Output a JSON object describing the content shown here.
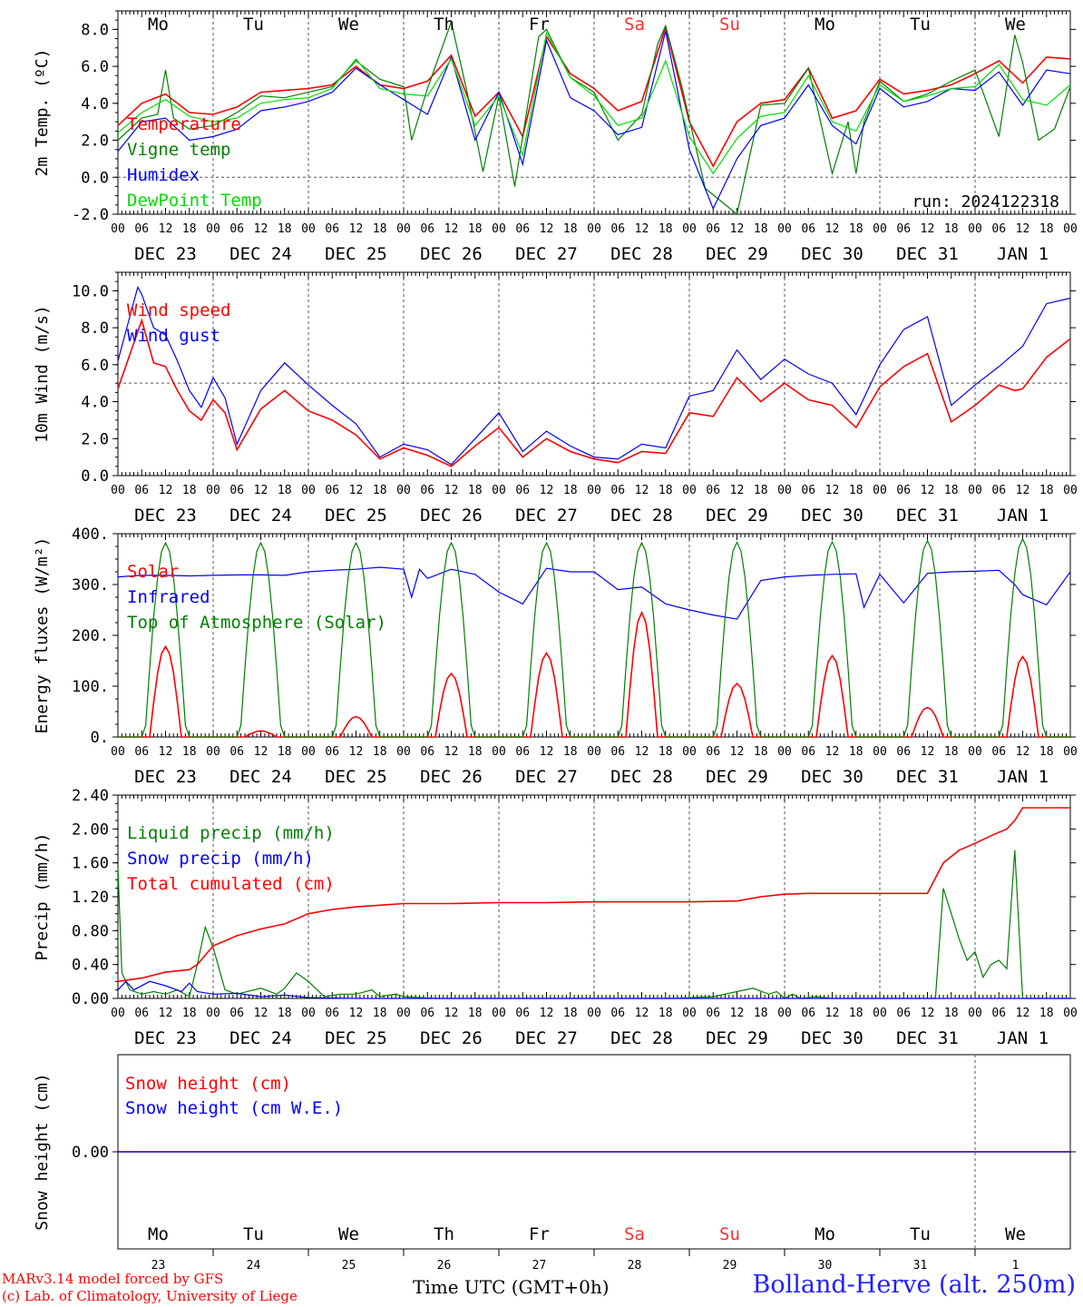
{
  "days": {
    "top": [
      "Mo",
      "Tu",
      "We",
      "Th",
      "Fr",
      "Sa",
      "Su",
      "Mo",
      "Tu",
      "We"
    ],
    "bottom_dates": [
      "23",
      "24",
      "25",
      "26",
      "27",
      "28",
      "29",
      "30",
      "31",
      "1"
    ],
    "weekend_color": "#ff3030",
    "weekend_index": [
      5,
      6
    ]
  },
  "date_labels": [
    "DEC 23",
    "DEC 24",
    "DEC 25",
    "DEC 26",
    "DEC 27",
    "DEC 28",
    "DEC 29",
    "DEC 30",
    "DEC 31",
    "JAN  1"
  ],
  "hour_labels": [
    "00",
    "06",
    "12",
    "18"
  ],
  "footer": {
    "credit_line1": "MARv3.14 model forced by GFS",
    "credit_line2": "(c) Lab. of Climatology, University of Liege",
    "time_axis": "Time UTC (GMT+0h)",
    "station": "Bolland-Herve (alt. 250m)"
  },
  "chart_data": [
    {
      "type": "line",
      "ylabel": "2m Temp. (ºC)",
      "ylim": [
        -2,
        9
      ],
      "yticks": [
        "-2.0",
        "0.0",
        "2.0",
        "4.0",
        "6.0",
        "8.0"
      ],
      "ytick_values": [
        -2,
        0,
        2,
        4,
        6,
        8
      ],
      "reference_line": 0,
      "annotation": "run: 2024122318",
      "x_unit": "hours since DEC 23 00 UTC",
      "series": [
        {
          "name": "Temperature",
          "color": "#ff0000",
          "x": [
            0,
            6,
            12,
            18,
            24,
            30,
            36,
            42,
            48,
            54,
            60,
            66,
            72,
            78,
            84,
            90,
            96,
            102,
            108,
            114,
            120,
            126,
            132,
            138,
            144,
            150,
            156,
            162,
            168,
            174,
            180,
            186,
            192,
            198,
            204,
            210,
            216,
            222,
            228,
            234,
            240
          ],
          "y": [
            2.8,
            4.0,
            4.5,
            3.5,
            3.4,
            3.8,
            4.6,
            4.7,
            4.8,
            5.0,
            6.0,
            5.0,
            4.8,
            5.2,
            6.6,
            3.3,
            4.6,
            2.2,
            7.6,
            5.6,
            4.8,
            3.6,
            4.1,
            8.1,
            3.0,
            0.6,
            3.0,
            4.0,
            4.2,
            5.9,
            3.2,
            3.6,
            5.3,
            4.5,
            4.7,
            5.0,
            5.6,
            6.3,
            5.1,
            6.5,
            6.4
          ]
        },
        {
          "name": "Vigne temp",
          "color": "#008000",
          "x": [
            0,
            6,
            10,
            12,
            14,
            18,
            24,
            30,
            36,
            42,
            48,
            54,
            60,
            66,
            72,
            74,
            78,
            84,
            88,
            92,
            96,
            100,
            106,
            108,
            114,
            120,
            126,
            132,
            136,
            138,
            142,
            148,
            156,
            162,
            168,
            174,
            180,
            184,
            186,
            188,
            192,
            198,
            204,
            210,
            216,
            222,
            226,
            228,
            232,
            236,
            240
          ],
          "y": [
            2.0,
            3.2,
            3.4,
            5.8,
            3.2,
            2.6,
            2.8,
            3.5,
            4.4,
            4.3,
            4.6,
            4.9,
            6.3,
            5.3,
            4.9,
            2.0,
            4.8,
            8.4,
            4.6,
            0.3,
            4.4,
            -0.5,
            7.6,
            8.0,
            5.4,
            4.6,
            2.0,
            3.4,
            7.2,
            8.2,
            5.0,
            -0.6,
            -2.2,
            3.9,
            4.0,
            5.9,
            0.2,
            3.0,
            0.2,
            3.0,
            5.2,
            4.1,
            4.5,
            5.2,
            5.8,
            2.2,
            7.7,
            6.2,
            2.0,
            2.6,
            4.9
          ]
        },
        {
          "name": "Humidex",
          "color": "#0000ff",
          "x": [
            0,
            6,
            12,
            18,
            24,
            30,
            36,
            42,
            48,
            54,
            60,
            66,
            72,
            78,
            84,
            90,
            96,
            102,
            108,
            114,
            120,
            126,
            132,
            138,
            144,
            150,
            156,
            162,
            168,
            174,
            180,
            186,
            192,
            198,
            204,
            210,
            216,
            222,
            228,
            234,
            240
          ],
          "y": [
            1.4,
            3.0,
            3.2,
            2.0,
            2.2,
            2.6,
            3.6,
            3.8,
            4.1,
            4.6,
            5.9,
            5.0,
            4.2,
            3.4,
            6.5,
            2.0,
            4.6,
            0.7,
            7.4,
            4.3,
            3.6,
            2.3,
            2.7,
            7.9,
            1.5,
            -1.7,
            1.0,
            2.8,
            3.2,
            5.0,
            2.8,
            1.8,
            4.8,
            3.8,
            4.1,
            4.8,
            4.7,
            5.7,
            3.9,
            5.8,
            5.6
          ]
        },
        {
          "name": "DewPoint Temp",
          "color": "#00dd00",
          "x": [
            0,
            6,
            12,
            18,
            24,
            30,
            36,
            42,
            48,
            54,
            60,
            66,
            72,
            78,
            84,
            90,
            96,
            102,
            108,
            114,
            120,
            126,
            132,
            138,
            144,
            150,
            156,
            162,
            168,
            174,
            180,
            186,
            192,
            198,
            204,
            210,
            216,
            222,
            228,
            234,
            240
          ],
          "y": [
            2.4,
            3.5,
            4.2,
            3.3,
            3.0,
            3.2,
            4.0,
            4.2,
            4.3,
            4.8,
            6.4,
            4.8,
            4.5,
            4.4,
            6.4,
            2.8,
            4.4,
            1.2,
            7.8,
            5.4,
            4.4,
            2.8,
            3.2,
            6.3,
            2.2,
            0.2,
            2.1,
            3.3,
            3.5,
            5.5,
            3.0,
            2.5,
            5.0,
            4.1,
            4.4,
            4.8,
            4.9,
            6.1,
            4.2,
            3.9,
            5.0
          ]
        }
      ]
    },
    {
      "type": "line",
      "ylabel": "10m Wind (m/s)",
      "ylim": [
        0,
        11
      ],
      "yticks": [
        "0.0",
        "2.0",
        "4.0",
        "6.0",
        "8.0",
        "10.0"
      ],
      "ytick_values": [
        0,
        2,
        4,
        6,
        8,
        10
      ],
      "reference_line": 5,
      "x_unit": "hours since DEC 23 00 UTC",
      "series": [
        {
          "name": "Wind speed",
          "color": "#ff0000",
          "x": [
            0,
            6,
            9,
            12,
            15,
            18,
            21,
            24,
            27,
            30,
            36,
            42,
            48,
            54,
            60,
            66,
            72,
            78,
            84,
            90,
            96,
            102,
            108,
            114,
            120,
            126,
            132,
            138,
            144,
            150,
            156,
            162,
            168,
            174,
            180,
            186,
            192,
            198,
            204,
            210,
            216,
            222,
            226,
            228,
            234,
            240
          ],
          "y": [
            4.7,
            8.4,
            6.1,
            5.9,
            4.6,
            3.5,
            3.0,
            4.1,
            3.4,
            1.4,
            3.6,
            4.6,
            3.5,
            3.0,
            2.2,
            0.9,
            1.5,
            1.1,
            0.5,
            1.6,
            2.6,
            1.0,
            2.0,
            1.3,
            0.9,
            0.7,
            1.3,
            1.2,
            3.4,
            3.2,
            5.3,
            4.0,
            5.0,
            4.1,
            3.8,
            2.6,
            4.8,
            5.9,
            6.6,
            2.9,
            3.8,
            4.9,
            4.6,
            4.7,
            6.4,
            7.4
          ]
        },
        {
          "name": "Wind gust",
          "color": "#0000ff",
          "x": [
            0,
            5,
            6,
            9,
            12,
            15,
            18,
            21,
            24,
            27,
            30,
            36,
            42,
            48,
            54,
            60,
            66,
            72,
            78,
            84,
            90,
            96,
            102,
            108,
            114,
            120,
            126,
            132,
            138,
            144,
            150,
            156,
            162,
            168,
            174,
            180,
            186,
            192,
            198,
            204,
            210,
            216,
            222,
            228,
            234,
            240
          ],
          "y": [
            6.2,
            10.2,
            9.8,
            8.0,
            7.6,
            6.2,
            4.6,
            3.7,
            5.3,
            4.2,
            1.7,
            4.6,
            6.1,
            4.9,
            3.8,
            2.8,
            1.0,
            1.7,
            1.4,
            0.6,
            2.0,
            3.4,
            1.3,
            2.4,
            1.6,
            1.0,
            0.9,
            1.7,
            1.5,
            4.3,
            4.6,
            6.8,
            5.2,
            6.3,
            5.5,
            5.0,
            3.3,
            6.0,
            7.9,
            8.6,
            3.8,
            4.9,
            5.9,
            7.0,
            9.3,
            9.6
          ]
        }
      ]
    },
    {
      "type": "line",
      "ylabel": "Energy fluxes (W/m²)",
      "ylim": [
        0,
        400
      ],
      "yticks": [
        "0.",
        "100.",
        "200.",
        "300.",
        "400."
      ],
      "ytick_values": [
        0,
        100,
        200,
        300,
        400
      ],
      "x_unit": "hours since DEC 23 00 UTC",
      "series": [
        {
          "name": "Solar",
          "color": "#ff0000",
          "day_peaks": [
            178,
            12,
            40,
            125,
            165,
            245,
            105,
            160,
            58,
            158
          ]
        },
        {
          "name": "Infrared",
          "color": "#0000ff",
          "x": [
            0,
            6,
            12,
            18,
            24,
            30,
            36,
            42,
            48,
            54,
            60,
            66,
            72,
            74,
            76,
            78,
            84,
            90,
            96,
            102,
            108,
            114,
            120,
            126,
            132,
            138,
            144,
            150,
            156,
            162,
            168,
            174,
            180,
            186,
            188,
            192,
            198,
            204,
            210,
            216,
            222,
            226,
            228,
            234,
            240
          ],
          "y": [
            315,
            318,
            318,
            317,
            318,
            319,
            319,
            318,
            325,
            328,
            330,
            334,
            330,
            275,
            330,
            312,
            330,
            320,
            285,
            262,
            332,
            325,
            325,
            290,
            295,
            262,
            250,
            240,
            232,
            308,
            315,
            318,
            320,
            321,
            255,
            320,
            264,
            322,
            325,
            326,
            328,
            300,
            280,
            260,
            325
          ]
        },
        {
          "name": "Top of Atmosphere (Solar)",
          "color": "#008000",
          "day_peaks": [
            382,
            382,
            382,
            382,
            382,
            382,
            383,
            384,
            386,
            390
          ]
        }
      ]
    },
    {
      "type": "line",
      "ylabel": "Precip (mm/h)",
      "ylim": [
        0,
        2.4
      ],
      "yticks": [
        "0.00",
        "0.40",
        "0.80",
        "1.20",
        "1.60",
        "2.00",
        "2.40"
      ],
      "ytick_values": [
        0,
        0.4,
        0.8,
        1.2,
        1.6,
        2.0,
        2.4
      ],
      "x_unit": "hours since DEC 23 00 UTC",
      "series": [
        {
          "name": "Liquid precip (mm/h)",
          "color": "#008000",
          "x": [
            0,
            1,
            3,
            6,
            9,
            12,
            15,
            18,
            20,
            22,
            24,
            27,
            30,
            36,
            40,
            42,
            45,
            48,
            52,
            56,
            60,
            64,
            66,
            70,
            72,
            80,
            100,
            120,
            140,
            150,
            160,
            164,
            166,
            168,
            170,
            172,
            176,
            180,
            190,
            200,
            204,
            206,
            208,
            210,
            212,
            214,
            216,
            218,
            220,
            222,
            224,
            226,
            228,
            232,
            240
          ],
          "y": [
            1.55,
            0.3,
            0.1,
            0.05,
            0.08,
            0.05,
            0.1,
            0.02,
            0.4,
            0.84,
            0.6,
            0.1,
            0.05,
            0.12,
            0.05,
            0.12,
            0.3,
            0.2,
            0.02,
            0.05,
            0.05,
            0.1,
            0.02,
            0.05,
            0.02,
            0.0,
            0.0,
            0.0,
            0.0,
            0.02,
            0.12,
            0.05,
            0.08,
            0.0,
            0.05,
            0.0,
            0.02,
            0.0,
            0.0,
            0.0,
            0.0,
            0.0,
            1.3,
            1.0,
            0.7,
            0.45,
            0.55,
            0.25,
            0.4,
            0.45,
            0.35,
            1.75,
            0.0,
            0.0,
            0.0
          ]
        },
        {
          "name": "Snow precip (mm/h)",
          "color": "#0000ff",
          "x": [
            0,
            2,
            4,
            8,
            12,
            16,
            18,
            20,
            24,
            30,
            36,
            42,
            48,
            60,
            72,
            100,
            150,
            200,
            240
          ],
          "y": [
            0.1,
            0.2,
            0.1,
            0.2,
            0.15,
            0.08,
            0.18,
            0.08,
            0.05,
            0.06,
            0.02,
            0.04,
            0.01,
            0.0,
            0.0,
            0.0,
            0.0,
            0.0,
            0.0
          ]
        },
        {
          "name": "Total cumulated (cm)",
          "color": "#ff0000",
          "x": [
            0,
            6,
            12,
            18,
            20,
            24,
            30,
            36,
            42,
            48,
            54,
            60,
            66,
            72,
            84,
            96,
            108,
            120,
            132,
            144,
            156,
            162,
            168,
            174,
            180,
            186,
            200,
            204,
            208,
            212,
            216,
            220,
            224,
            226,
            228,
            240
          ],
          "y": [
            0.2,
            0.24,
            0.31,
            0.34,
            0.4,
            0.62,
            0.74,
            0.82,
            0.88,
            1.0,
            1.05,
            1.08,
            1.1,
            1.12,
            1.12,
            1.13,
            1.13,
            1.14,
            1.14,
            1.14,
            1.15,
            1.2,
            1.23,
            1.24,
            1.24,
            1.24,
            1.24,
            1.24,
            1.6,
            1.75,
            1.83,
            1.92,
            2.0,
            2.1,
            2.25,
            2.25
          ]
        }
      ]
    },
    {
      "type": "line",
      "ylabel": "Snow height (cm)",
      "ylim": [
        -1,
        1
      ],
      "yticks": [
        "0.00"
      ],
      "ytick_values": [
        0
      ],
      "x_unit": "hours since DEC 23 00 UTC",
      "series": [
        {
          "name": "Snow height (cm)",
          "color": "#ff0000",
          "x": [
            0,
            240
          ],
          "y": [
            0,
            0
          ]
        },
        {
          "name": "Snow height (cm W.E.)",
          "color": "#0000ff",
          "x": [
            0,
            240
          ],
          "y": [
            0,
            0
          ]
        }
      ]
    }
  ]
}
